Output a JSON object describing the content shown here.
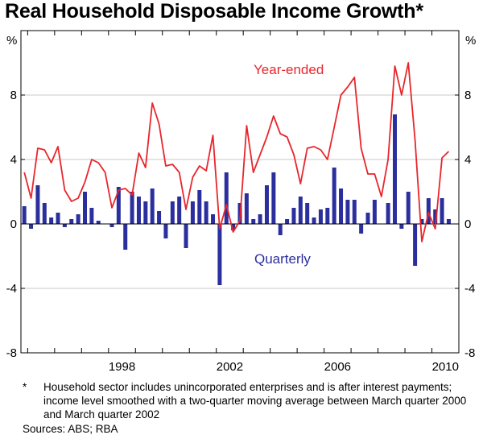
{
  "chart_data": {
    "type": "bar+line",
    "title": "Real Household Disposable Income Growth*",
    "y_unit_left": "%",
    "y_unit_right": "%",
    "ylim": [
      -8,
      12
    ],
    "yticks": [
      -8,
      -4,
      0,
      4,
      8
    ],
    "ytick_labels": [
      "-8",
      "-4",
      "0",
      "4",
      "8"
    ],
    "x_range": [
      1994.75,
      2011.0
    ],
    "xticks": [
      1998,
      2002,
      2006,
      2010
    ],
    "xtick_labels": [
      "1998",
      "2002",
      "2006",
      "2010"
    ],
    "series": [
      {
        "name": "Quarterly",
        "kind": "bar",
        "color": "#2b2f9e",
        "x": [
          1994.875,
          1995.125,
          1995.375,
          1995.625,
          1995.875,
          1996.125,
          1996.375,
          1996.625,
          1996.875,
          1997.125,
          1997.375,
          1997.625,
          1997.875,
          1998.125,
          1998.375,
          1998.625,
          1998.875,
          1999.125,
          1999.375,
          1999.625,
          1999.875,
          2000.125,
          2000.375,
          2000.625,
          2000.875,
          2001.125,
          2001.375,
          2001.625,
          2001.875,
          2002.125,
          2002.375,
          2002.625,
          2002.875,
          2003.125,
          2003.375,
          2003.625,
          2003.875,
          2004.125,
          2004.375,
          2004.625,
          2004.875,
          2005.125,
          2005.375,
          2005.625,
          2005.875,
          2006.125,
          2006.375,
          2006.625,
          2006.875,
          2007.125,
          2007.375,
          2007.625,
          2007.875,
          2008.125,
          2008.375,
          2008.625,
          2008.875,
          2009.125,
          2009.375,
          2009.625,
          2009.875,
          2010.125,
          2010.375,
          2010.625
        ],
        "values": [
          1.1,
          -0.3,
          2.4,
          1.3,
          0.4,
          0.7,
          -0.2,
          0.3,
          0.6,
          2.0,
          1.0,
          0.2,
          0.0,
          -0.2,
          2.3,
          -1.6,
          2.0,
          1.7,
          1.4,
          2.2,
          0.8,
          -0.9,
          1.4,
          1.7,
          -1.5,
          1.4,
          2.1,
          1.4,
          0.6,
          -3.8,
          3.2,
          -0.4,
          1.3,
          1.9,
          0.3,
          0.6,
          2.4,
          3.2,
          -0.7,
          0.3,
          1.0,
          1.7,
          1.3,
          0.4,
          0.9,
          1.0,
          3.5,
          2.2,
          1.5,
          1.5,
          -0.6,
          0.7,
          1.5,
          0.0,
          1.3,
          6.8,
          -0.3,
          2.0,
          -2.6,
          0.3,
          1.6,
          0.9,
          1.6,
          0.3
        ]
      },
      {
        "name": "Year-ended",
        "kind": "line",
        "color": "#e8262c",
        "x": [
          1994.875,
          1995.125,
          1995.375,
          1995.625,
          1995.875,
          1996.125,
          1996.375,
          1996.625,
          1996.875,
          1997.125,
          1997.375,
          1997.625,
          1997.875,
          1998.125,
          1998.375,
          1998.625,
          1998.875,
          1999.125,
          1999.375,
          1999.625,
          1999.875,
          2000.125,
          2000.375,
          2000.625,
          2000.875,
          2001.125,
          2001.375,
          2001.625,
          2001.875,
          2002.125,
          2002.375,
          2002.625,
          2002.875,
          2003.125,
          2003.375,
          2003.625,
          2003.875,
          2004.125,
          2004.375,
          2004.625,
          2004.875,
          2005.125,
          2005.375,
          2005.625,
          2005.875,
          2006.125,
          2006.375,
          2006.625,
          2006.875,
          2007.125,
          2007.375,
          2007.625,
          2007.875,
          2008.125,
          2008.375,
          2008.625,
          2008.875,
          2009.125,
          2009.375,
          2009.625,
          2009.875,
          2010.125,
          2010.375,
          2010.625
        ],
        "values": [
          3.2,
          1.6,
          4.7,
          4.6,
          3.8,
          4.8,
          2.1,
          1.4,
          1.6,
          2.6,
          4.0,
          3.8,
          3.2,
          1.0,
          2.1,
          2.2,
          1.8,
          4.4,
          3.5,
          7.5,
          6.2,
          3.6,
          3.7,
          3.2,
          0.9,
          2.9,
          3.6,
          3.3,
          5.5,
          -0.3,
          1.2,
          -0.5,
          0.2,
          6.1,
          3.2,
          4.3,
          5.4,
          6.7,
          5.6,
          5.4,
          4.3,
          2.5,
          4.7,
          4.8,
          4.6,
          4.0,
          6.0,
          8.0,
          8.5,
          9.1,
          4.7,
          3.1,
          3.1,
          1.7,
          4.0,
          9.8,
          8.0,
          10.0,
          5.2,
          -1.1,
          0.7,
          -0.3,
          4.1,
          4.5
        ]
      }
    ],
    "annotations": [
      {
        "text": "Year-ended"
      },
      {
        "text": "Quarterly"
      }
    ]
  },
  "footnote": {
    "marker": "*",
    "text": "Household sector includes unincorporated enterprises and is after interest payments; income level smoothed with a two-quarter moving average between March quarter 2000 and March quarter 2002"
  },
  "sources": "Sources: ABS; RBA"
}
